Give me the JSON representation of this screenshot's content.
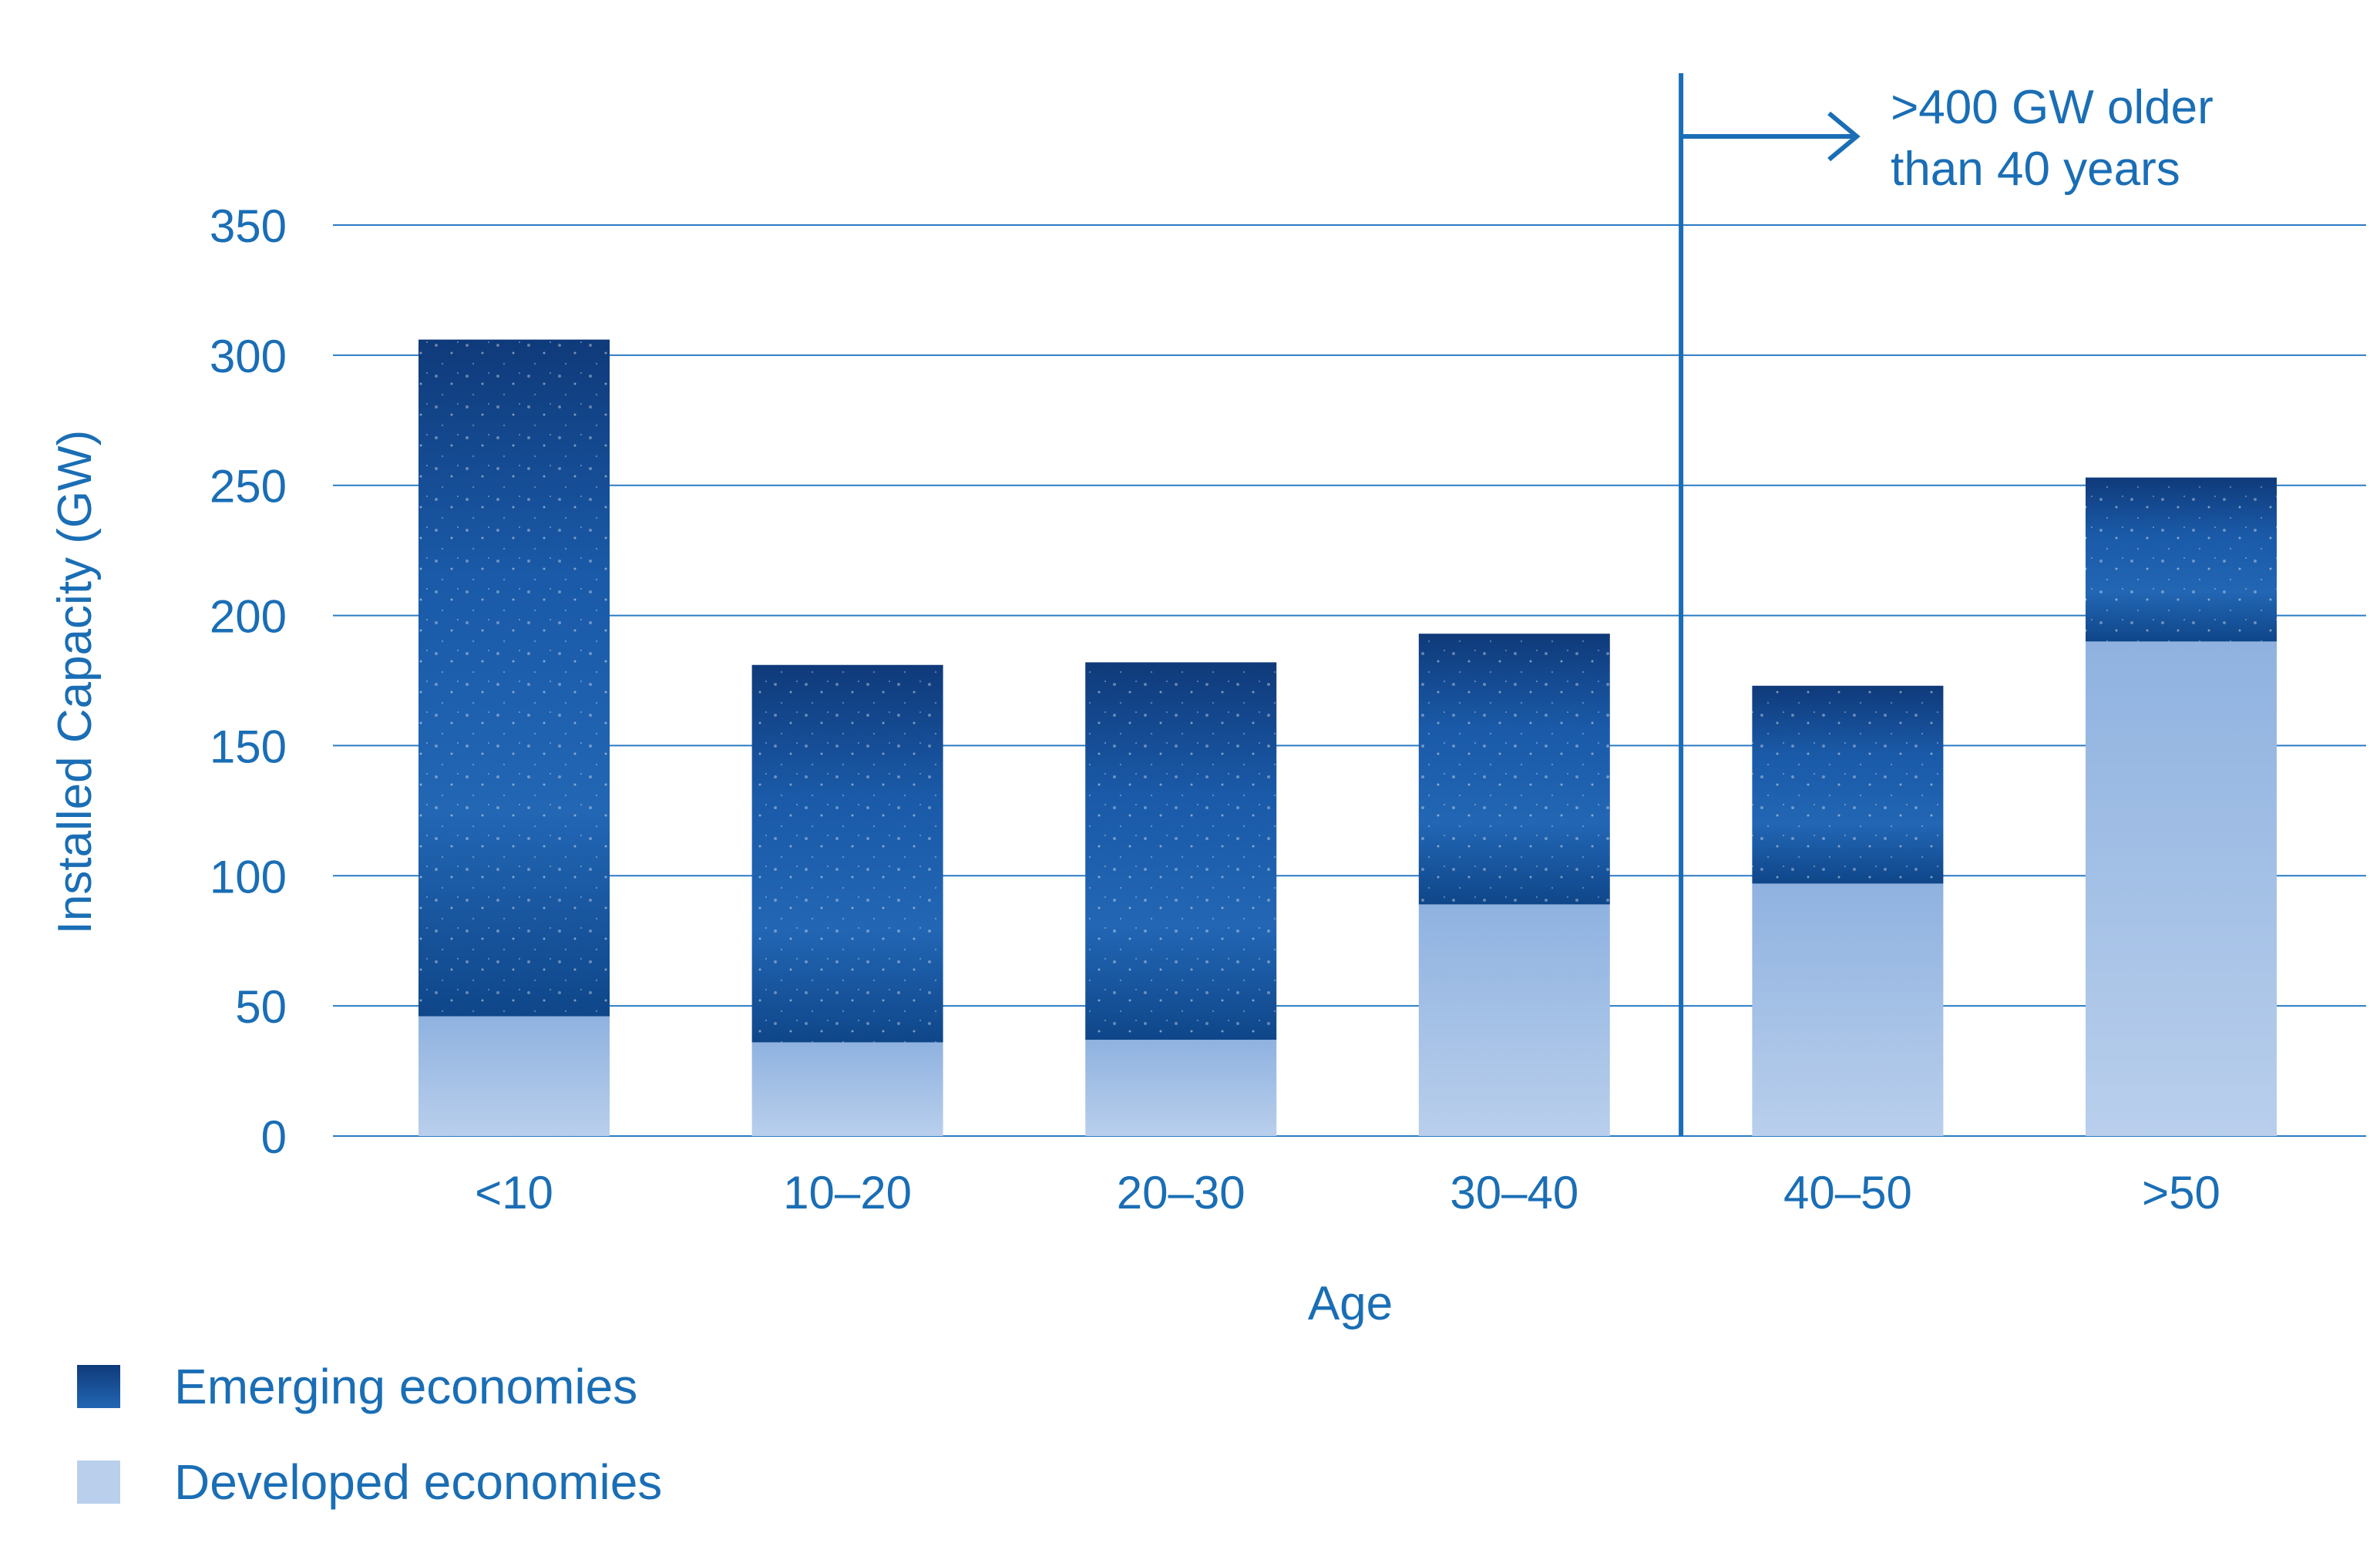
{
  "chart_data": {
    "type": "bar",
    "stacked": true,
    "title": "",
    "xlabel": "Age",
    "ylabel": "Installed Capacity (GW)",
    "ylim": [
      0,
      350
    ],
    "yticks": [
      0,
      50,
      100,
      150,
      200,
      250,
      300,
      350
    ],
    "grid": true,
    "categories": [
      "<10",
      "10–20",
      "20–30",
      "30–40",
      "40–50",
      ">50"
    ],
    "series": [
      {
        "name": "Developed economies",
        "values": [
          46,
          36,
          37,
          89,
          97,
          190
        ],
        "color": "#a9c4e8"
      },
      {
        "name": "Emerging economies",
        "values": [
          260,
          145,
          145,
          104,
          76,
          63
        ],
        "color": "#1554a0"
      }
    ],
    "annotation": {
      "line1": ">400 GW older",
      "line2": "than 40 years",
      "after_category": "30–40"
    },
    "legend_position": "bottom-left"
  },
  "legend": {
    "emerging_label": "Emerging economies",
    "developed_label": "Developed economies"
  }
}
